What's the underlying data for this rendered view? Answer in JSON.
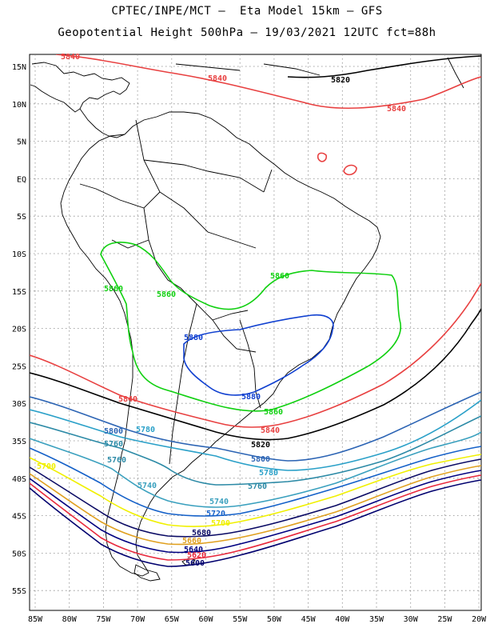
{
  "header": {
    "line1": "CPTEC/INPE/MCT –  Eta Model 15km – GFS",
    "line2": "Geopotential Height 500hPa – 19/03/2021 12UTC fct=88h"
  },
  "axes": {
    "lat_labels": [
      "15N",
      "10N",
      "5N",
      "EQ",
      "5S",
      "10S",
      "15S",
      "20S",
      "25S",
      "30S",
      "35S",
      "40S",
      "45S",
      "50S",
      "55S"
    ],
    "lon_labels": [
      "85W",
      "80W",
      "75W",
      "70W",
      "65W",
      "60W",
      "55W",
      "50W",
      "45W",
      "40W",
      "35W",
      "30W",
      "25W",
      "20W"
    ]
  },
  "colors": {
    "c5600": "#00006e",
    "c5620": "#e8283c",
    "c5640": "#000080",
    "c5660": "#e0a020",
    "c5680": "#0a0a64",
    "c5700": "#f0f000",
    "c5720": "#1460c8",
    "c5740": "#3aa0be",
    "c5760": "#2c8aa6",
    "c5780": "#2aa0c8",
    "c5800": "#2c64b4",
    "c5820": "#000000",
    "c5840": "#e84040",
    "c5860": "#10d010",
    "c5880": "#1040d0"
  },
  "contour_labels": [
    {
      "id": "n5840a",
      "text": "5840",
      "color": "c5840"
    },
    {
      "id": "n5840b",
      "text": "5840",
      "color": "c5840"
    },
    {
      "id": "n5820a",
      "text": "5820",
      "color": "c5820"
    },
    {
      "id": "n5840c",
      "text": "5840",
      "color": "c5840"
    },
    {
      "id": "n5860a",
      "text": "5860",
      "color": "c5860"
    },
    {
      "id": "n5860b",
      "text": "5860",
      "color": "c5860"
    },
    {
      "id": "n5860c",
      "text": "5860",
      "color": "c5860"
    },
    {
      "id": "n5880a",
      "text": "5880",
      "color": "c5880"
    },
    {
      "id": "n5880b",
      "text": "5880",
      "color": "c5880"
    },
    {
      "id": "n5860d",
      "text": "5860",
      "color": "c5860"
    },
    {
      "id": "n5840d",
      "text": "5840",
      "color": "c5840"
    },
    {
      "id": "n5840e",
      "text": "5840",
      "color": "c5840"
    },
    {
      "id": "n5820b",
      "text": "5820",
      "color": "c5820"
    },
    {
      "id": "n5800a",
      "text": "5800",
      "color": "c5800"
    },
    {
      "id": "n5780a",
      "text": "5780",
      "color": "c5780"
    },
    {
      "id": "n5760a",
      "text": "5760",
      "color": "c5760"
    },
    {
      "id": "n5760b",
      "text": "5760",
      "color": "c5760"
    },
    {
      "id": "n5760c",
      "text": "5760",
      "color": "c5760"
    },
    {
      "id": "n5800b",
      "text": "5800",
      "color": "c5800"
    },
    {
      "id": "n5780b",
      "text": "5780",
      "color": "c5780"
    },
    {
      "id": "n5740a",
      "text": "5740",
      "color": "c5740"
    },
    {
      "id": "n5740b",
      "text": "5740",
      "color": "c5740"
    },
    {
      "id": "n5720a",
      "text": "5720",
      "color": "c5720"
    },
    {
      "id": "n5700a",
      "text": "5700",
      "color": "c5700"
    },
    {
      "id": "n5700b",
      "text": "5700",
      "color": "c5700"
    },
    {
      "id": "n5680a",
      "text": "5680",
      "color": "c5680"
    },
    {
      "id": "n5660a",
      "text": "5660",
      "color": "c5660"
    },
    {
      "id": "n5640a",
      "text": "5640",
      "color": "c5640"
    },
    {
      "id": "n5620a",
      "text": "5620",
      "color": "c5620"
    },
    {
      "id": "n5600a",
      "text": "5600",
      "color": "c5600"
    }
  ]
}
